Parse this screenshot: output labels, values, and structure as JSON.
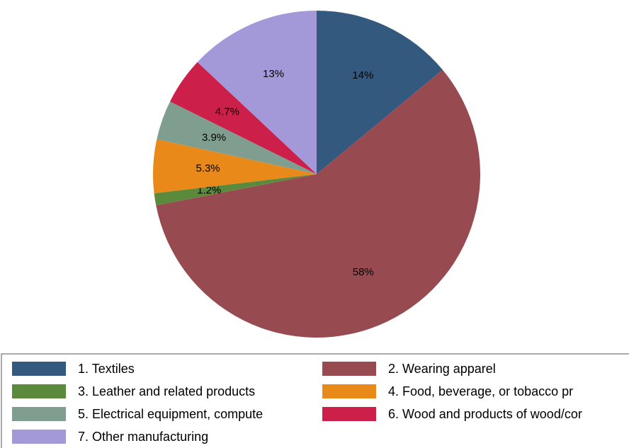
{
  "chart_data": {
    "type": "pie",
    "categories": [
      "1. Textiles",
      "2. Wearing apparel",
      "3. Leather and related products",
      "4. Food, beverage, or tobacco pr",
      "5. Electrical equipment, compute",
      "6. Wood and products of wood/cor",
      "7. Other manufacturing"
    ],
    "values": [
      14,
      58,
      1.2,
      5.3,
      3.9,
      4.7,
      13
    ],
    "value_labels": [
      "14%",
      "58%",
      "1.2%",
      "5.3%",
      "3.9%",
      "4.7%",
      "13%"
    ],
    "colors": [
      "#34597e",
      "#974a50",
      "#5b8a3c",
      "#e8891a",
      "#7f9e8f",
      "#cc1f4a",
      "#a399d8"
    ]
  }
}
